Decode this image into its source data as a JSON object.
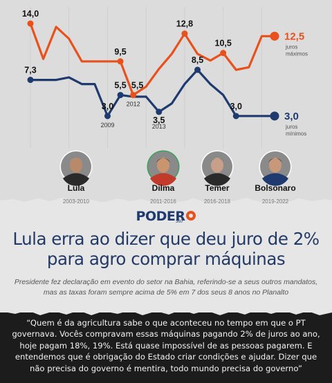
{
  "chart_data": {
    "type": "line",
    "title": "",
    "xlabel": "",
    "ylabel": "",
    "ylim": [
      2,
      14.5
    ],
    "x": [
      2003,
      2004,
      2005,
      2006,
      2007,
      2008,
      2009,
      2010,
      2011,
      2012,
      2013,
      2014,
      2015,
      2016,
      2017,
      2018,
      2019,
      2020,
      2021,
      2022
    ],
    "series": [
      {
        "name": "juros máximos",
        "color": "#e8501c",
        "values": [
          14.0,
          9.8,
          13.6,
          12.2,
          9.5,
          9.5,
          9.5,
          9.5,
          5.5,
          6.5,
          8.6,
          10.4,
          12.8,
          10.4,
          9.6,
          10.5,
          8.5,
          8.8,
          12.5,
          12.5
        ]
      },
      {
        "name": "juros mínimos",
        "color": "#1e3a6e",
        "values": [
          7.3,
          7.3,
          7.3,
          7.6,
          6.8,
          6.8,
          3.0,
          5.5,
          5.3,
          5.3,
          3.5,
          4.5,
          6.8,
          8.5,
          6.8,
          5.5,
          3.0,
          3.0,
          3.0,
          3.0
        ]
      }
    ],
    "data_labels": [
      {
        "text": "14,0",
        "x": 2003,
        "y": 14.0,
        "series": "juros máximos",
        "pos": "above"
      },
      {
        "text": "9,5",
        "x": 2010,
        "y": 9.5,
        "series": "juros máximos",
        "pos": "above"
      },
      {
        "text": "5,5",
        "x": 2011,
        "y": 5.5,
        "series": "juros máximos",
        "pos": "above-right"
      },
      {
        "text": "12,8",
        "x": 2015,
        "y": 12.8,
        "series": "juros máximos",
        "pos": "above"
      },
      {
        "text": "10,5",
        "x": 2018,
        "y": 10.5,
        "series": "juros máximos",
        "pos": "above"
      },
      {
        "text": "7,3",
        "x": 2003,
        "y": 7.3,
        "series": "juros mínimos",
        "pos": "above"
      },
      {
        "text": "3,0",
        "x": 2009,
        "y": 3.0,
        "series": "juros mínimos",
        "pos": "above"
      },
      {
        "text": "5,5",
        "x": 2010,
        "y": 5.5,
        "series": "juros mínimos",
        "pos": "above"
      },
      {
        "text": "3,5",
        "x": 2013,
        "y": 3.5,
        "series": "juros mínimos",
        "pos": "below"
      },
      {
        "text": "8,5",
        "x": 2016,
        "y": 8.5,
        "series": "juros mínimos",
        "pos": "above"
      },
      {
        "text": "3,0",
        "x": 2019,
        "y": 3.0,
        "series": "juros mínimos",
        "pos": "above"
      }
    ],
    "year_labels": [
      {
        "text": "2012",
        "x": 2011,
        "y": 5.5,
        "pos": "below"
      },
      {
        "text": "2009",
        "x": 2009,
        "y": 3.0,
        "pos": "below"
      },
      {
        "text": "2013",
        "x": 2013,
        "y": 3.5,
        "pos": "below2"
      }
    ],
    "end_labels": [
      {
        "value": "12,5",
        "note": "juros\nmáximos",
        "series": "juros máximos",
        "y": 12.5
      },
      {
        "value": "3,0",
        "note": "juros\nmínimos",
        "series": "juros mínimos",
        "y": 3.0
      }
    ],
    "presidents": [
      {
        "name": "Lula",
        "years": "2003-2010"
      },
      {
        "name": "Dilma",
        "years": "2011-2016"
      },
      {
        "name": "Temer",
        "years": "2016-2018"
      },
      {
        "name": "Bolsonaro",
        "years": "2019-2022"
      }
    ]
  },
  "brand": {
    "name": "PODER",
    "sub": "360"
  },
  "headline": "Lula erra ao dizer que deu juro de 2% para agro comprar máquinas",
  "subtitle": "Presidente fez declaração em evento do setor na Bahia, referindo-se a seus outros mandatos, mas as taxas foram sempre acima de 5% em 7 dos seus 8 anos no Planalto",
  "quote": "“Quem é da agricultura sabe o que aconteceu no tempo em que o PT governava. Vocês compravam essas máquinas pagando 2% de juros ao ano, hoje pagam 18%, 19%. Está quase impossível de as pessoas pagarem. E entendemos que é obrigação do Estado criar condições e ajudar. Dizer que não precisa do governo é mentira, todo mundo precisa do governo”"
}
